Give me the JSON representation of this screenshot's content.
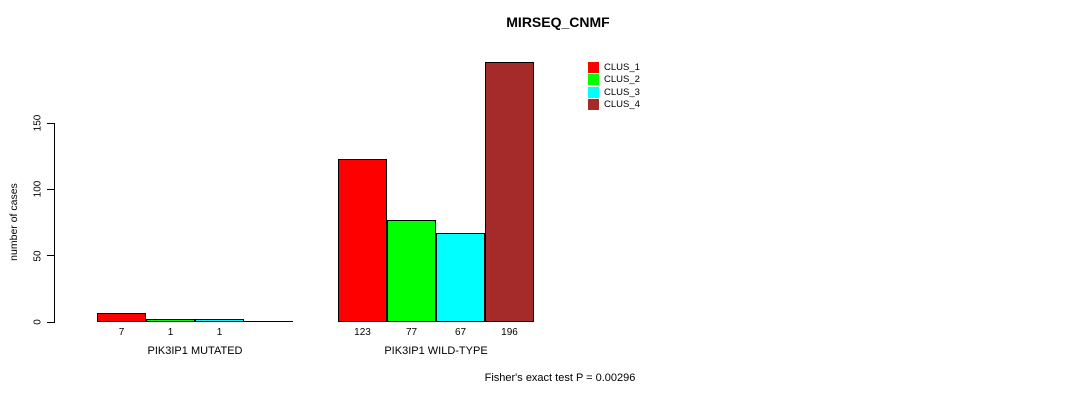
{
  "title": "MIRSEQ_CNMF",
  "annotation": "Fisher's exact test P = 0.00296",
  "chart_data": {
    "type": "bar",
    "title": "MIRSEQ_CNMF",
    "xlabel": "",
    "ylabel": "number of cases",
    "ylim": [
      0,
      150
    ],
    "yticks": [
      0,
      50,
      100,
      150
    ],
    "grid": false,
    "legend_position": "top-right-inside",
    "background_color": "#ffffff",
    "groups": [
      "PIK3IP1 MUTATED",
      "PIK3IP1 WILD-TYPE"
    ],
    "series": [
      {
        "name": "CLUS_1",
        "color": "#ff0000",
        "values": [
          7,
          123
        ]
      },
      {
        "name": "CLUS_2",
        "color": "#00ff00",
        "values": [
          1,
          77
        ]
      },
      {
        "name": "CLUS_3",
        "color": "#00ffff",
        "values": [
          1,
          67
        ]
      },
      {
        "name": "CLUS_4",
        "color": "#a52a2a",
        "values": [
          0,
          196
        ]
      }
    ],
    "bar_value_labels": {
      "shown": true,
      "zero_labels_hidden": true
    },
    "annotation": "Fisher's exact test P = 0.00296"
  }
}
